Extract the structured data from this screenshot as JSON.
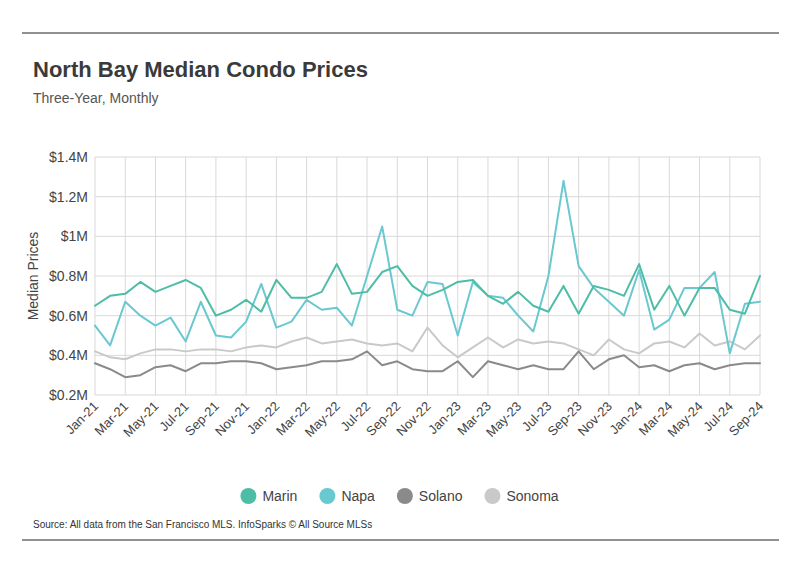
{
  "chart_data": {
    "type": "line",
    "title": "North Bay Median Condo Prices",
    "subtitle": "Three-Year, Monthly",
    "y_label": "Median Prices",
    "source": "Source:  All data from the San Francisco MLS. InfoSparks © All Source MLSs",
    "legend": "bottom",
    "grid": true,
    "categories": [
      "Jan-21",
      null,
      "Mar-21",
      null,
      "May-21",
      null,
      "Jul-21",
      null,
      "Sep-21",
      null,
      "Nov-21",
      null,
      "Jan-22",
      null,
      "Mar-22",
      null,
      "May-22",
      null,
      "Jul-22",
      null,
      "Sep-22",
      null,
      "Nov-22",
      null,
      "Jan-23",
      null,
      "Mar-23",
      null,
      "May-23",
      null,
      "Jul-23",
      null,
      "Sep-23",
      null,
      "Nov-23",
      null,
      "Jan-24",
      null,
      "Mar-24",
      null,
      "May-24",
      null,
      "Jul-24",
      null,
      "Sep-24"
    ],
    "ylim": [
      0.2,
      1.4
    ],
    "yticks": [
      {
        "value": 0.2,
        "label": "$0.2M"
      },
      {
        "value": 0.4,
        "label": "$0.4M"
      },
      {
        "value": 0.6,
        "label": "$0.6M"
      },
      {
        "value": 0.8,
        "label": "$0.8M"
      },
      {
        "value": 1.0,
        "label": "$1M"
      },
      {
        "value": 1.2,
        "label": "$1.2M"
      },
      {
        "value": 1.4,
        "label": "$1.4M"
      }
    ],
    "series": [
      {
        "name": "Marin",
        "color": "#4dbda6",
        "values": [
          0.65,
          0.7,
          0.71,
          0.77,
          0.72,
          0.75,
          0.78,
          0.74,
          0.6,
          0.63,
          0.68,
          0.62,
          0.78,
          0.69,
          0.69,
          0.72,
          0.86,
          0.71,
          0.72,
          0.82,
          0.85,
          0.75,
          0.7,
          0.73,
          0.77,
          0.78,
          0.7,
          0.66,
          0.72,
          0.65,
          0.62,
          0.75,
          0.61,
          0.75,
          0.73,
          0.7,
          0.86,
          0.63,
          0.75,
          0.6,
          0.74,
          0.74,
          0.63,
          0.61,
          0.8
        ]
      },
      {
        "name": "Napa",
        "color": "#6ac8d0",
        "values": [
          0.55,
          0.45,
          0.67,
          0.6,
          0.55,
          0.59,
          0.47,
          0.67,
          0.5,
          0.49,
          0.57,
          0.76,
          0.54,
          0.57,
          0.68,
          0.63,
          0.64,
          0.55,
          0.8,
          1.05,
          0.63,
          0.6,
          0.77,
          0.76,
          0.5,
          0.77,
          0.7,
          0.69,
          0.6,
          0.52,
          0.8,
          1.28,
          0.85,
          0.74,
          0.67,
          0.6,
          0.83,
          0.53,
          0.58,
          0.74,
          0.74,
          0.82,
          0.41,
          0.66,
          0.67
        ]
      },
      {
        "name": "Solano",
        "color": "#8a8a8a",
        "values": [
          0.36,
          0.33,
          0.29,
          0.3,
          0.34,
          0.35,
          0.32,
          0.36,
          0.36,
          0.37,
          0.37,
          0.36,
          0.33,
          0.34,
          0.35,
          0.37,
          0.37,
          0.38,
          0.42,
          0.35,
          0.37,
          0.33,
          0.32,
          0.32,
          0.37,
          0.29,
          0.37,
          0.35,
          0.33,
          0.35,
          0.33,
          0.33,
          0.42,
          0.33,
          0.38,
          0.4,
          0.34,
          0.35,
          0.32,
          0.35,
          0.36,
          0.33,
          0.35,
          0.36,
          0.36
        ]
      },
      {
        "name": "Sonoma",
        "color": "#c9c9c9",
        "values": [
          0.42,
          0.39,
          0.38,
          0.41,
          0.43,
          0.43,
          0.42,
          0.43,
          0.43,
          0.42,
          0.44,
          0.45,
          0.44,
          0.47,
          0.49,
          0.46,
          0.47,
          0.48,
          0.46,
          0.45,
          0.46,
          0.42,
          0.54,
          0.45,
          0.39,
          0.44,
          0.49,
          0.44,
          0.48,
          0.46,
          0.47,
          0.46,
          0.43,
          0.4,
          0.48,
          0.43,
          0.41,
          0.46,
          0.47,
          0.44,
          0.51,
          0.45,
          0.47,
          0.43,
          0.5
        ]
      }
    ]
  }
}
